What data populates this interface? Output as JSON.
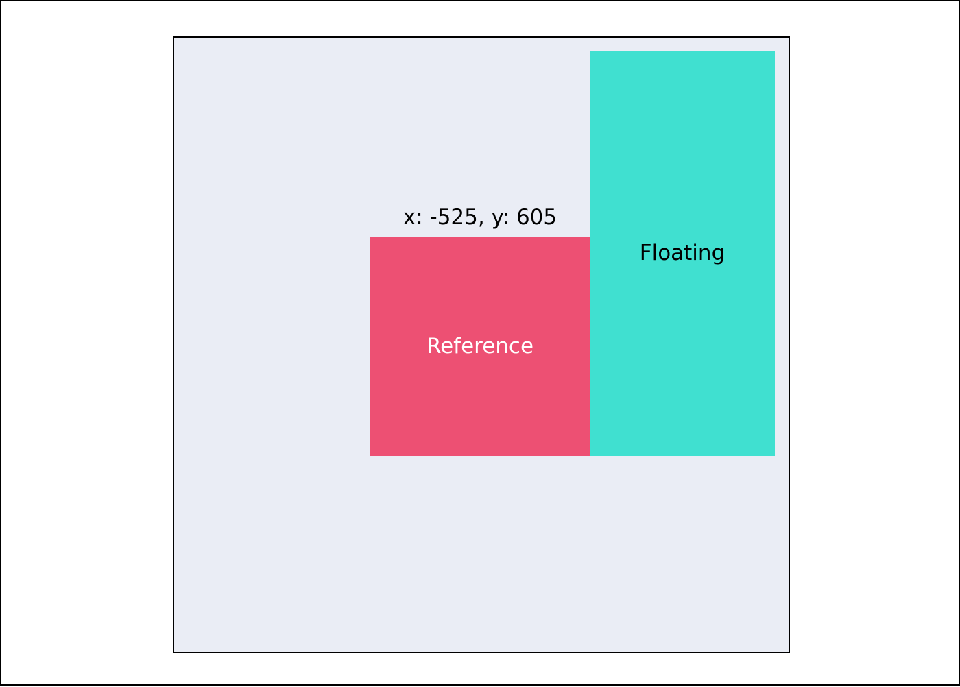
{
  "playground": {
    "coordinates_text": "x: -525, y: 605",
    "reference": {
      "label": "Reference",
      "color": "#ed5073"
    },
    "floating": {
      "label": "Floating",
      "color": "#40e0d0"
    },
    "container_background": "#eaedf5"
  }
}
